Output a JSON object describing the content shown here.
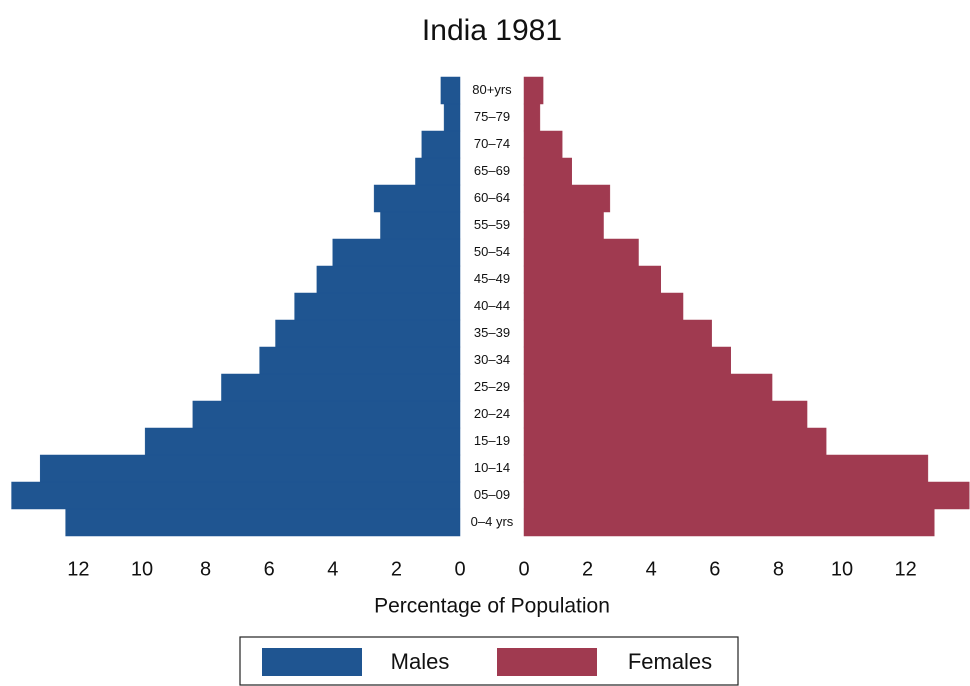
{
  "chart_data": {
    "type": "pyramid",
    "title": "India 1981",
    "xlabel": "Percentage of Population",
    "categories": [
      "0–4 yrs",
      "05–09",
      "10–14",
      "15–19",
      "20–24",
      "25–29",
      "30–34",
      "35–39",
      "40–44",
      "45–49",
      "50–54",
      "55–59",
      "60–64",
      "65–69",
      "70–74",
      "75–79",
      "80+yrs"
    ],
    "series": [
      {
        "name": "Males",
        "color": "#1f5591",
        "values": [
          12.4,
          14.1,
          13.2,
          9.9,
          8.4,
          7.5,
          6.3,
          5.8,
          5.2,
          4.5,
          4.0,
          2.5,
          2.7,
          1.4,
          1.2,
          0.5,
          0.6
        ]
      },
      {
        "name": "Females",
        "color": "#a03a50",
        "values": [
          12.9,
          14.0,
          12.7,
          9.5,
          8.9,
          7.8,
          6.5,
          5.9,
          5.0,
          4.3,
          3.6,
          2.5,
          2.7,
          1.5,
          1.2,
          0.5,
          0.6
        ]
      }
    ],
    "xlim": [
      0,
      14.2
    ],
    "xticks": [
      0,
      2,
      4,
      6,
      8,
      10,
      12
    ],
    "legend": "bottom"
  }
}
